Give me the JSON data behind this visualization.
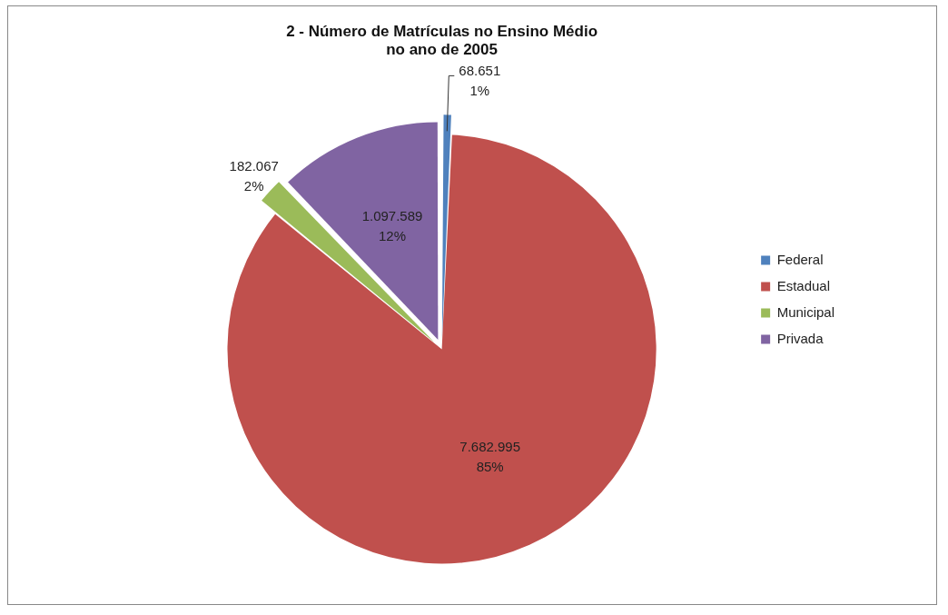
{
  "chart_data": {
    "type": "pie",
    "title": "2 - Número de Matrículas no Ensino Médio\nno ano de 2005",
    "categories": [
      "Federal",
      "Estadual",
      "Municipal",
      "Privada"
    ],
    "values": [
      68651,
      7682995,
      182067,
      1097589
    ],
    "colors": [
      "#4f81bd",
      "#c0504d",
      "#9bbb59",
      "#8064a2"
    ],
    "value_labels": [
      "68.651\n1%",
      "7.682.995\n85%",
      "182.067\n2%",
      "1.097.589\n12%"
    ],
    "legend": "right"
  }
}
